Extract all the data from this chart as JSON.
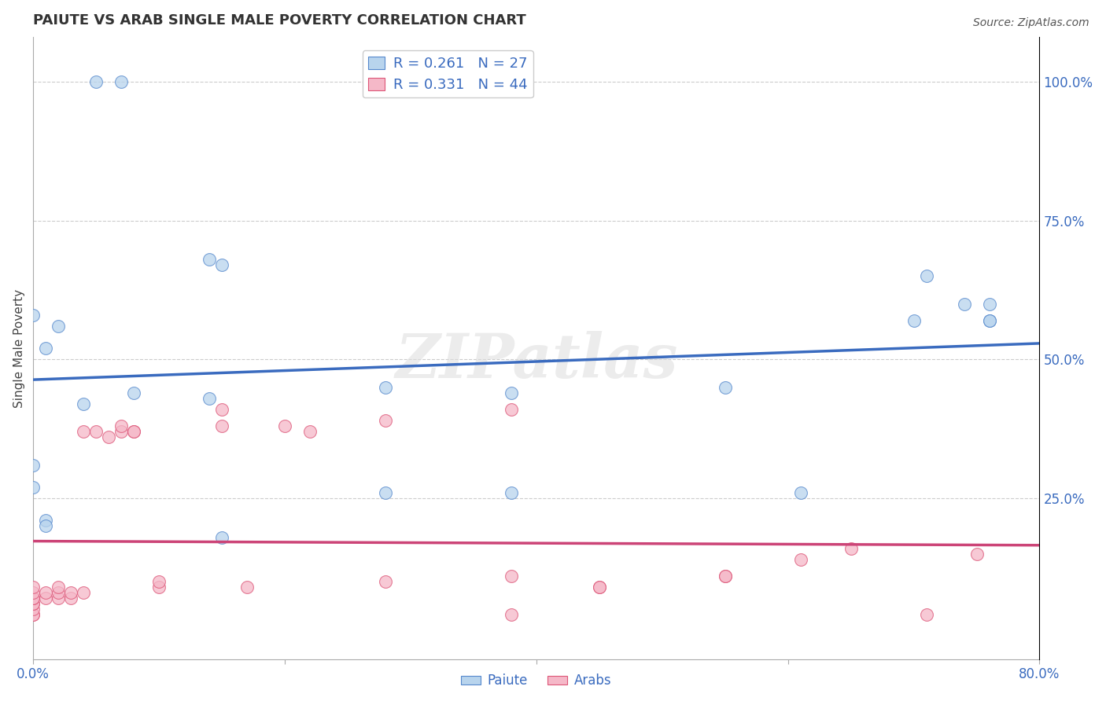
{
  "title": "PAIUTE VS ARAB SINGLE MALE POVERTY CORRELATION CHART",
  "source": "Source: ZipAtlas.com",
  "ylabel": "Single Male Poverty",
  "xlim": [
    0.0,
    0.8
  ],
  "ylim": [
    -0.04,
    1.08
  ],
  "xtick_positions": [
    0.0,
    0.2,
    0.4,
    0.6,
    0.8
  ],
  "xtick_labels": [
    "0.0%",
    "",
    "",
    "",
    "80.0%"
  ],
  "ytick_labels": [
    "100.0%",
    "75.0%",
    "50.0%",
    "25.0%"
  ],
  "ytick_positions": [
    1.0,
    0.75,
    0.5,
    0.25
  ],
  "paiute_fill": "#b8d4ed",
  "paiute_edge": "#5588cc",
  "arab_fill": "#f5b8c8",
  "arab_edge": "#dd5577",
  "paiute_line_color": "#3a6bbf",
  "arab_line_color": "#cc4477",
  "legend_label_paiute": "R = 0.261   N = 27",
  "legend_label_arab": "R = 0.331   N = 44",
  "watermark": "ZIPatlas",
  "paiute_x": [
    0.05,
    0.07,
    0.0,
    0.0,
    0.01,
    0.01,
    0.01,
    0.02,
    0.08,
    0.14,
    0.15,
    0.15,
    0.28,
    0.38,
    0.55,
    0.61,
    0.7,
    0.71,
    0.74,
    0.76,
    0.76,
    0.76,
    0.0,
    0.04,
    0.14,
    0.28,
    0.38
  ],
  "paiute_y": [
    1.0,
    1.0,
    0.58,
    0.27,
    0.52,
    0.21,
    0.2,
    0.56,
    0.44,
    0.43,
    0.67,
    0.18,
    0.45,
    0.44,
    0.45,
    0.26,
    0.57,
    0.65,
    0.6,
    0.6,
    0.57,
    0.57,
    0.31,
    0.42,
    0.68,
    0.26,
    0.26
  ],
  "arab_x": [
    0.0,
    0.0,
    0.0,
    0.0,
    0.0,
    0.0,
    0.0,
    0.0,
    0.0,
    0.01,
    0.01,
    0.02,
    0.02,
    0.02,
    0.03,
    0.03,
    0.04,
    0.04,
    0.05,
    0.06,
    0.07,
    0.07,
    0.08,
    0.08,
    0.1,
    0.1,
    0.15,
    0.15,
    0.17,
    0.2,
    0.22,
    0.28,
    0.28,
    0.38,
    0.38,
    0.38,
    0.45,
    0.45,
    0.55,
    0.55,
    0.61,
    0.65,
    0.71,
    0.75
  ],
  "arab_y": [
    0.04,
    0.04,
    0.05,
    0.06,
    0.06,
    0.07,
    0.07,
    0.08,
    0.09,
    0.07,
    0.08,
    0.07,
    0.08,
    0.09,
    0.07,
    0.08,
    0.08,
    0.37,
    0.37,
    0.36,
    0.37,
    0.38,
    0.37,
    0.37,
    0.09,
    0.1,
    0.38,
    0.41,
    0.09,
    0.38,
    0.37,
    0.1,
    0.39,
    0.11,
    0.04,
    0.41,
    0.09,
    0.09,
    0.11,
    0.11,
    0.14,
    0.16,
    0.04,
    0.15
  ]
}
